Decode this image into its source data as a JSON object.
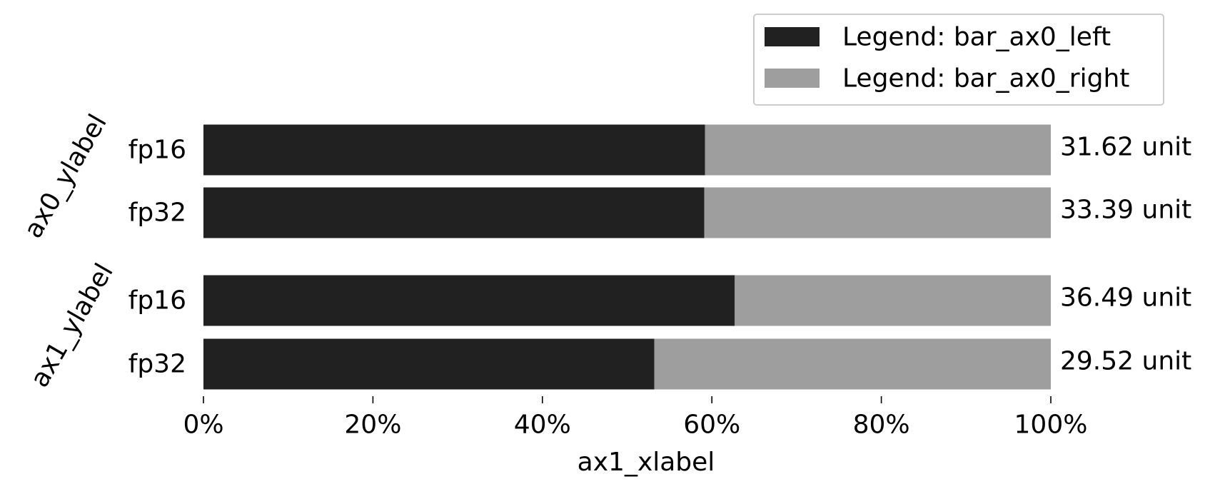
{
  "chart_data": {
    "type": "bar",
    "orientation": "horizontal",
    "stacked": true,
    "normalized": true,
    "groups": [
      {
        "ylabel": "ax0_ylabel",
        "categories": [
          "fp16",
          "fp32"
        ],
        "left_fraction": [
          0.592,
          0.591
        ],
        "totals": [
          "31.62 unit",
          "33.39 unit"
        ]
      },
      {
        "ylabel": "ax1_ylabel",
        "categories": [
          "fp16",
          "fp32"
        ],
        "left_fraction": [
          0.627,
          0.532
        ],
        "totals": [
          "36.49 unit",
          "29.52 unit"
        ]
      }
    ],
    "series": [
      {
        "name": "Legend: bar_ax0_left",
        "color": "#212121"
      },
      {
        "name": "Legend: bar_ax0_right",
        "color": "#9e9e9e"
      }
    ],
    "xlabel": "ax1_xlabel",
    "xticks": [
      "0%",
      "20%",
      "40%",
      "60%",
      "80%",
      "100%"
    ],
    "xlim": [
      0,
      1
    ],
    "grid": false,
    "legend_position": "top-right"
  }
}
